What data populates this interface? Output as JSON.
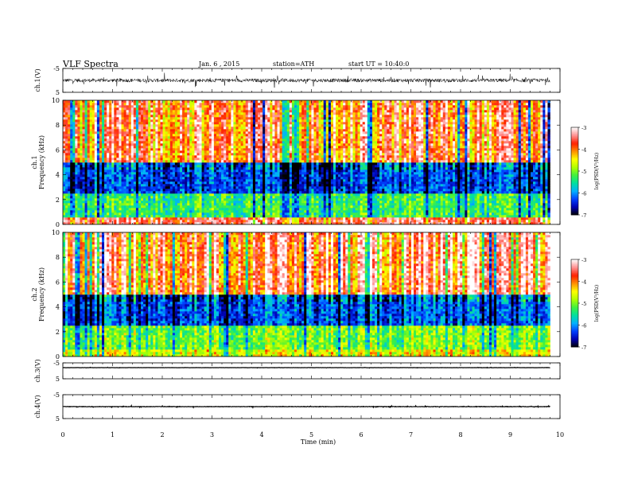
{
  "header": {
    "title": "VLF Spectra",
    "date": "Jan. 6 , 2015",
    "station": "station=ATH",
    "start": "start UT = 10:40:0"
  },
  "colors": {
    "scale": [
      "#000000",
      "#0000b0",
      "#0040ff",
      "#00b0ff",
      "#00e0a0",
      "#40f040",
      "#b0ff00",
      "#ffff00",
      "#ff9000",
      "#ff2000",
      "#ff9090",
      "#ffffff"
    ]
  },
  "chart_data": [
    {
      "type": "line",
      "panel": "ch1-waveform",
      "ylabel": "ch.1(V)",
      "ylim": [
        -5,
        5
      ],
      "ytick_labels": [
        "5",
        "-5"
      ],
      "baseline": 0,
      "noise_amplitude": 2.5
    },
    {
      "type": "heatmap",
      "panel": "ch1-spectrogram",
      "ylabel": "ch.1\nFrequency (kHz)",
      "ylabel_lines": [
        "ch.1",
        "Frequency (kHz)"
      ],
      "ylim": [
        0,
        10
      ],
      "ytick_labels": [
        "0",
        "2",
        "4",
        "6",
        "8",
        "10"
      ],
      "xlim": [
        0,
        9.8
      ],
      "colorbar": {
        "label": "log(PSD(V²/Hz)",
        "range": [
          -7,
          -3
        ],
        "tick_labels": [
          "-3",
          "-4",
          "-5",
          "-6",
          "-7"
        ]
      },
      "description_levels": {
        "0-0.5kHz": -3.5,
        "0.5-2.5kHz": -5.3,
        "2.5-5kHz": -6.3,
        "5-10kHz": -3.8
      }
    },
    {
      "type": "heatmap",
      "panel": "ch2-spectrogram",
      "ylabel": "ch.2\nFrequency (kHz)",
      "ylabel_lines": [
        "ch.2",
        "Frequency (kHz)"
      ],
      "ylim": [
        0,
        10
      ],
      "ytick_labels": [
        "0",
        "2",
        "4",
        "6",
        "8",
        "10"
      ],
      "xlim": [
        0,
        9.8
      ],
      "colorbar": {
        "label": "log(PSD(V²/Hz)",
        "range": [
          -7,
          -3
        ],
        "tick_labels": [
          "-3",
          "-4",
          "-5",
          "-6",
          "-7"
        ]
      },
      "description_levels": {
        "0-0.5kHz": -4.5,
        "0.5-2.5kHz": -5.0,
        "2.5-5kHz": -6.2,
        "5-10kHz": -3.6
      }
    },
    {
      "type": "line",
      "panel": "ch3-waveform",
      "ylabel": "ch.3(V)",
      "ylim": [
        -5,
        5
      ],
      "ytick_labels": [
        "5",
        "-5"
      ],
      "baseline": 2,
      "noise_amplitude": 0.2
    },
    {
      "type": "line",
      "panel": "ch4-waveform",
      "ylabel": "ch.4(V)",
      "ylim": [
        -5,
        5
      ],
      "ytick_labels": [
        "5",
        "-5"
      ],
      "baseline": 0,
      "noise_amplitude": 0.3
    }
  ],
  "xaxis": {
    "label": "Time (min)",
    "range": [
      0,
      10
    ],
    "data_end": 9.8,
    "tick_labels": [
      "0",
      "1",
      "2",
      "3",
      "4",
      "5",
      "6",
      "7",
      "8",
      "9",
      "10"
    ]
  }
}
